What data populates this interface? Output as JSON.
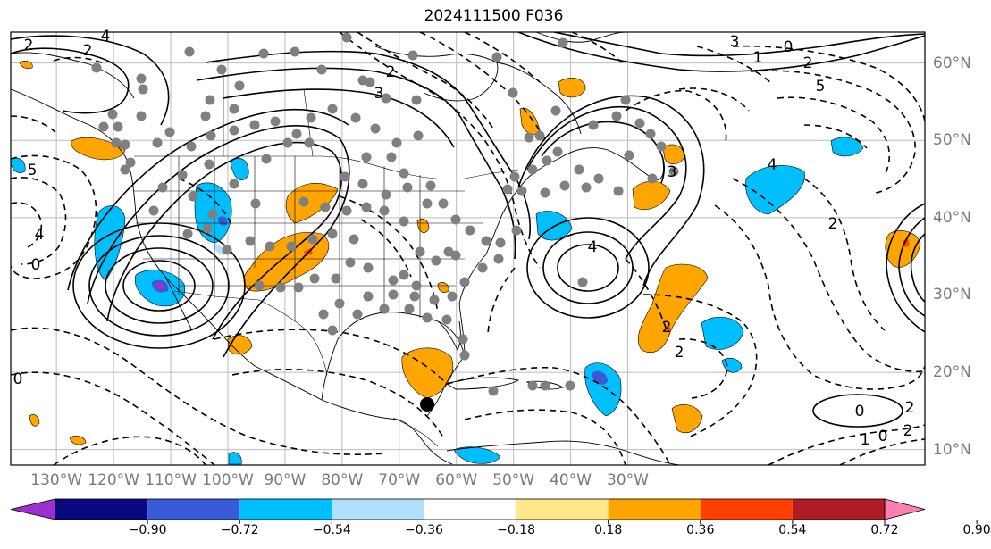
{
  "title": "2024111500 F036",
  "map": {
    "projection": "lat-lon",
    "lon_range": [
      -138,
      22
    ],
    "lat_range": [
      8,
      64
    ],
    "gridlines": true,
    "lon_ticks": [
      "130°W",
      "120°W",
      "110°W",
      "100°W",
      "90°W",
      "80°W",
      "70°W",
      "60°W",
      "50°W",
      "40°W",
      "30°W"
    ],
    "lat_ticks": [
      "60°N",
      "50°N",
      "40°N",
      "30°N",
      "20°N",
      "10°N"
    ],
    "marked_location": "black-dot",
    "contour_labels": [
      "2",
      "2",
      "4",
      "3",
      "2",
      "5",
      "4",
      "3",
      "4",
      "2",
      "2",
      "0",
      "0",
      "2",
      "4",
      "5",
      "0",
      "3",
      "1",
      "2",
      "2",
      "0",
      "1",
      "2",
      "0"
    ]
  },
  "colorbar": {
    "extend": "both",
    "colors": [
      "#9b30d0",
      "#08087f",
      "#3a5bd8",
      "#00bfff",
      "#b0e0fa",
      "#ffffff",
      "#ffe88a",
      "#ffa500",
      "#ff4000",
      "#b01c24",
      "#ff80b0"
    ],
    "tick_labels": [
      "−0.90",
      "−0.72",
      "−0.54",
      "−0.36",
      "−0.18",
      "0.18",
      "0.36",
      "0.54",
      "0.72",
      "0.90"
    ]
  },
  "colors": {
    "land_line": "#000000",
    "grid": "#bbbbbb",
    "station_dot": "#808080",
    "tick_label": "#7a7a7a"
  }
}
